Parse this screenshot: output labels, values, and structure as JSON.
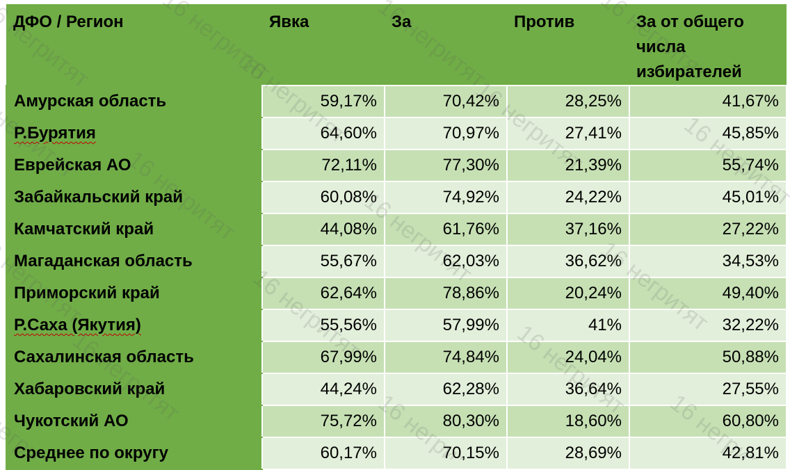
{
  "table": {
    "headers": [
      "ДФО / Регион",
      "Явка",
      "За",
      "Против",
      "За от общего числа избирателей"
    ],
    "rows": [
      {
        "region": "Амурская область",
        "values": [
          "59,17%",
          "70,42%",
          "28,25%",
          "41,67%"
        ]
      },
      {
        "region": "Р.Бурятия",
        "values": [
          "64,60%",
          "70,97%",
          "27,41%",
          "45,85%"
        ]
      },
      {
        "region": "Еврейская АО",
        "values": [
          "72,11%",
          "77,30%",
          "21,39%",
          "55,74%"
        ]
      },
      {
        "region": "Забайкальский край",
        "values": [
          "60,08%",
          "74,92%",
          "24,22%",
          "45,01%"
        ]
      },
      {
        "region": "Камчатский край",
        "values": [
          "44,08%",
          "61,76%",
          "37,16%",
          "27,22%"
        ]
      },
      {
        "region": "Магаданская область",
        "values": [
          "55,67%",
          "62,03%",
          "36,62%",
          "34,53%"
        ]
      },
      {
        "region": "Приморский край",
        "values": [
          "62,64%",
          "78,86%",
          "20,24%",
          "49,40%"
        ]
      },
      {
        "region": "Р.Саха (Якутия)",
        "values": [
          "55,56%",
          "57,99%",
          "41%",
          "32,22%"
        ]
      },
      {
        "region": "Сахалинская область",
        "values": [
          "67,99%",
          "74,84%",
          "24,04%",
          "50,88%"
        ]
      },
      {
        "region": "Хабаровский край",
        "values": [
          "44,24%",
          "62,28%",
          "36,64%",
          "27,55%"
        ]
      },
      {
        "region": "Чукотский АО",
        "values": [
          "75,72%",
          "80,30%",
          "18,60%",
          "60,80%"
        ]
      },
      {
        "region": "Среднее по округу",
        "values": [
          "60,17%",
          "70,15%",
          "28,69%",
          "42,81%"
        ]
      }
    ]
  },
  "watermark": {
    "text": "16 негритят"
  },
  "colors": {
    "header_green": "#70ad47",
    "band_dark": "#c6e0b4",
    "band_light": "#e2efda",
    "spellcheck_red": "#c00000"
  }
}
